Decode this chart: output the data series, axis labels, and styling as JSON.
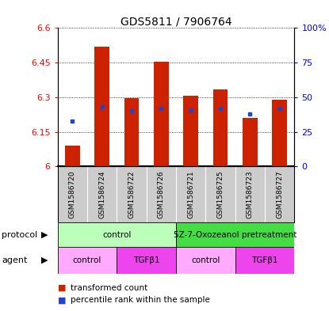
{
  "title": "GDS5811 / 7906764",
  "samples": [
    "GSM1586720",
    "GSM1586724",
    "GSM1586722",
    "GSM1586726",
    "GSM1586721",
    "GSM1586725",
    "GSM1586723",
    "GSM1586727"
  ],
  "red_values": [
    6.09,
    6.52,
    6.295,
    6.455,
    6.305,
    6.335,
    6.21,
    6.29
  ],
  "blue_values_pct": [
    33,
    43,
    40,
    42,
    41,
    42,
    38,
    42
  ],
  "ylim_left": [
    6.0,
    6.6
  ],
  "ylim_right": [
    0,
    100
  ],
  "yticks_left": [
    6.0,
    6.15,
    6.3,
    6.45,
    6.6
  ],
  "yticks_right": [
    0,
    25,
    50,
    75,
    100
  ],
  "ytick_labels_left": [
    "6",
    "6.15",
    "6.3",
    "6.45",
    "6.6"
  ],
  "ytick_labels_right": [
    "0",
    "25",
    "50",
    "75",
    "100%"
  ],
  "bar_bottom": 6.0,
  "protocol_labels": [
    "control",
    "5Z-7-Oxozeanol pretreatment"
  ],
  "protocol_ranges": [
    [
      0,
      4
    ],
    [
      4,
      8
    ]
  ],
  "protocol_colors_light": "#bbffbb",
  "protocol_colors_dark": "#44dd44",
  "agent_labels": [
    "control",
    "TGFβ1",
    "control",
    "TGFβ1"
  ],
  "agent_ranges": [
    [
      0,
      2
    ],
    [
      2,
      4
    ],
    [
      4,
      6
    ],
    [
      6,
      8
    ]
  ],
  "agent_color_light": "#ffaaff",
  "agent_color_dark": "#ee44ee",
  "bar_color": "#cc2200",
  "dot_color": "#2244cc",
  "background_color": "#ffffff",
  "sample_bg_color": "#cccccc",
  "legend_items": [
    {
      "color": "#cc2200",
      "label": "transformed count"
    },
    {
      "color": "#2244cc",
      "label": "percentile rank within the sample"
    }
  ]
}
